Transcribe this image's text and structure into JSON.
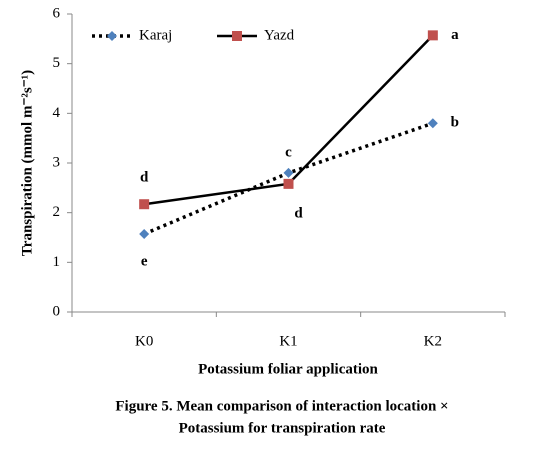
{
  "chart_data": {
    "type": "line",
    "x_label": "Potassium foliar application",
    "y_label": "Transpiration  (mmol m⁻²s⁻¹)",
    "caption": [
      "Figure 5. Mean comparison of interaction location ×",
      "Potassium for transpiration rate"
    ],
    "categories": [
      "K0",
      "K1",
      "K2"
    ],
    "series": [
      {
        "name": "Karaj",
        "color": "#4f81bd",
        "marker": "diamond",
        "line_style": "dotted",
        "values": [
          1.57,
          2.8,
          3.8
        ],
        "significance_letters": [
          "e",
          "c",
          "b"
        ]
      },
      {
        "name": "Yazd",
        "color": "#c0504d",
        "marker": "square",
        "line_style": "solid",
        "values": [
          2.17,
          2.58,
          5.57
        ],
        "significance_letters": [
          "d",
          "d",
          "a"
        ]
      }
    ],
    "ylim": [
      0,
      6
    ],
    "yticks": [
      0,
      1,
      2,
      3,
      4,
      5,
      6
    ],
    "legend": "top-left",
    "grid": false
  }
}
